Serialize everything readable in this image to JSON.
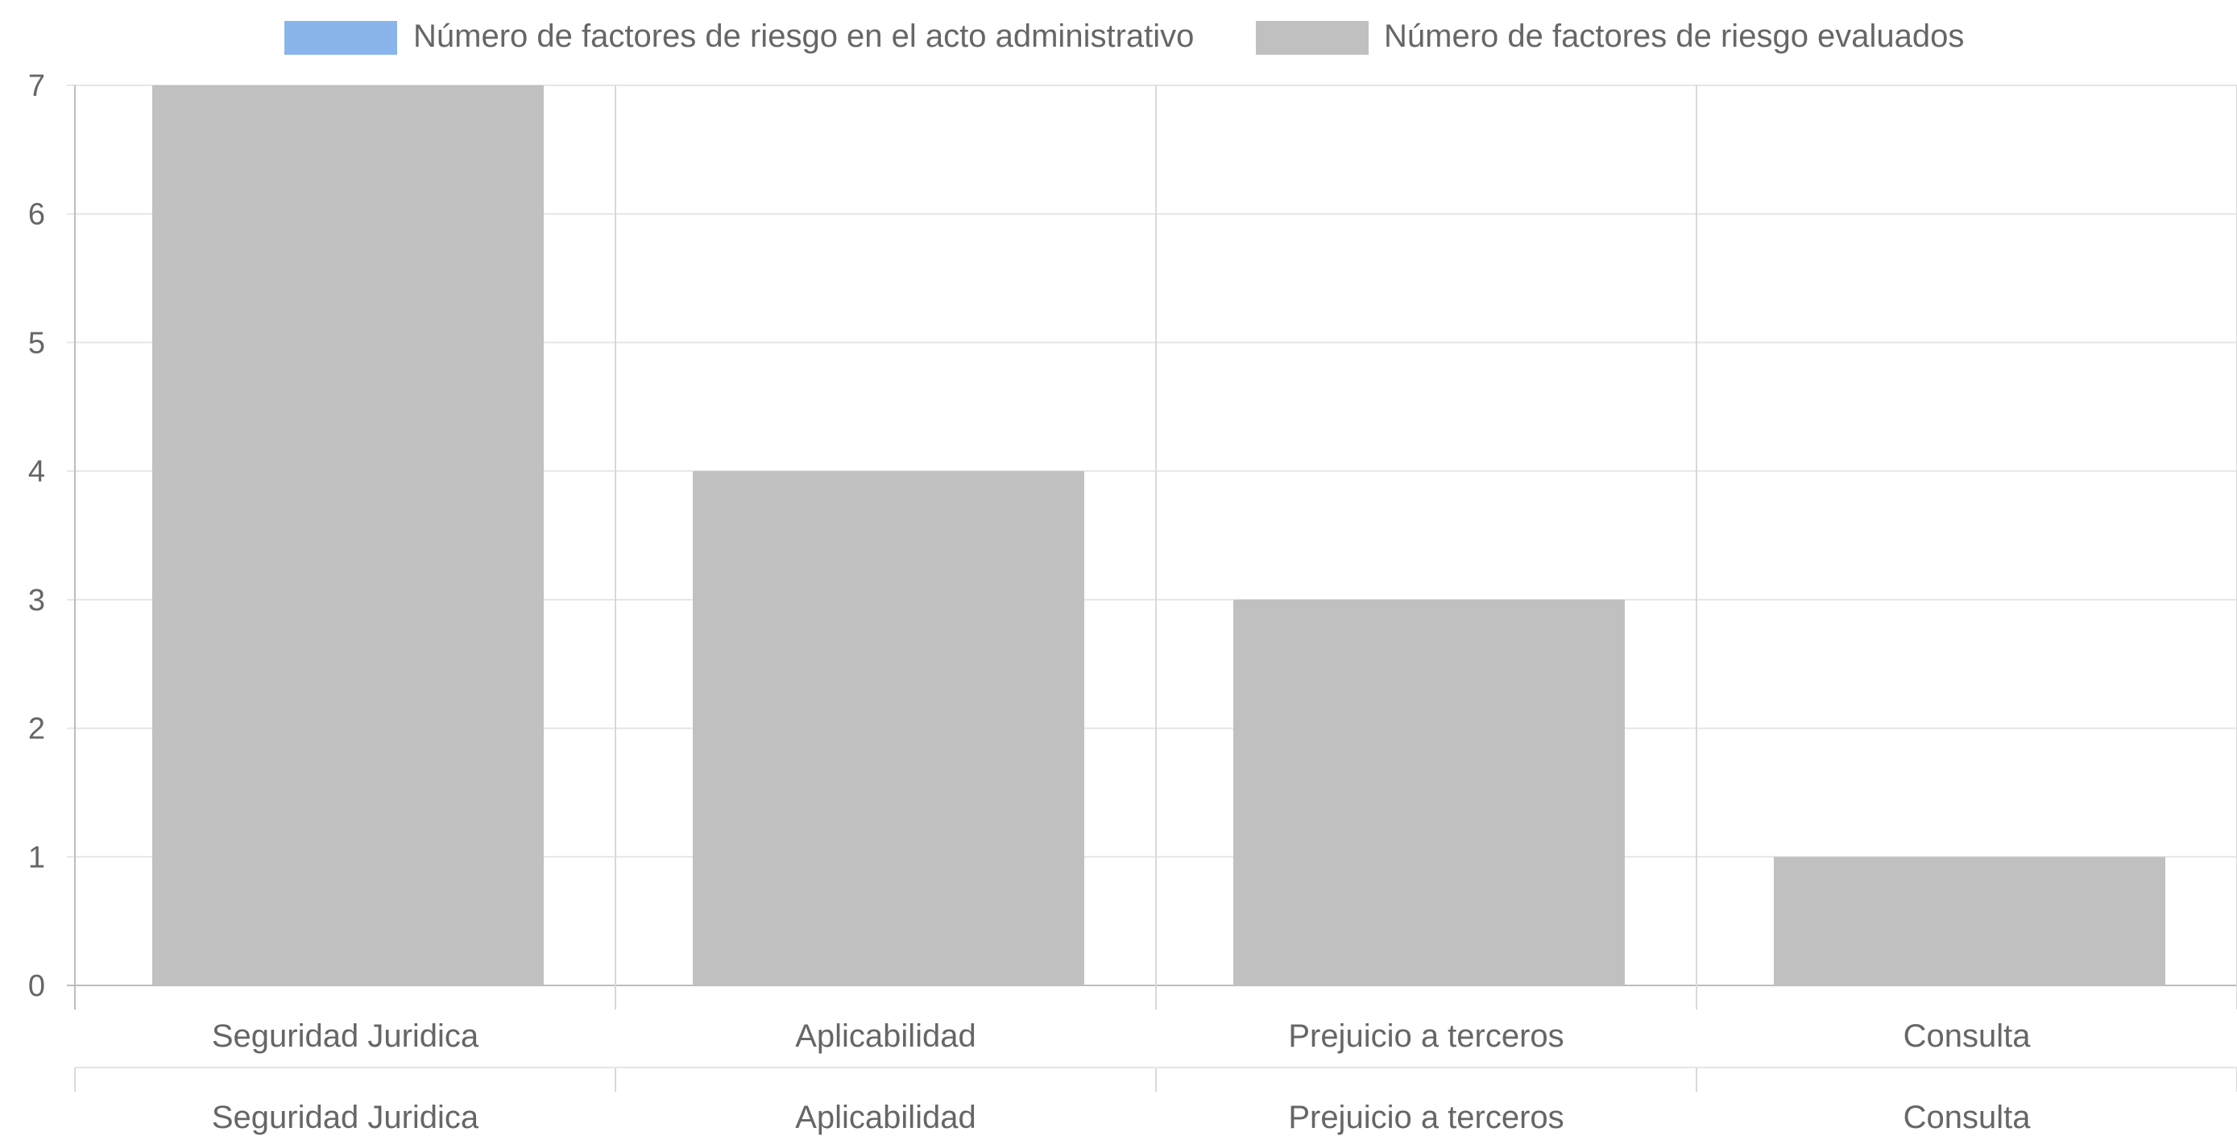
{
  "chart_data": {
    "type": "bar",
    "title": "",
    "xlabel": "",
    "ylabel": "",
    "ylim": [
      0,
      7
    ],
    "yticks": [
      0,
      1,
      2,
      3,
      4,
      5,
      6,
      7
    ],
    "categories": [
      "Seguridad Juridica",
      "Aplicabilidad",
      "Prejuicio a terceros",
      "Consulta"
    ],
    "secondary_category_labels": [
      "Seguridad Juridica",
      "Aplicabilidad",
      "Prejuicio a terceros",
      "Consulta"
    ],
    "grid": true,
    "legend_position": "top",
    "series": [
      {
        "name": "Número de factores de riesgo en el acto administrativo",
        "color": "#8ab4ec",
        "values": [
          0,
          0,
          0,
          0
        ]
      },
      {
        "name": "Número de factores de riesgo evaluados",
        "color": "#c0c0c0",
        "values": [
          7,
          4,
          3,
          1
        ]
      }
    ]
  }
}
